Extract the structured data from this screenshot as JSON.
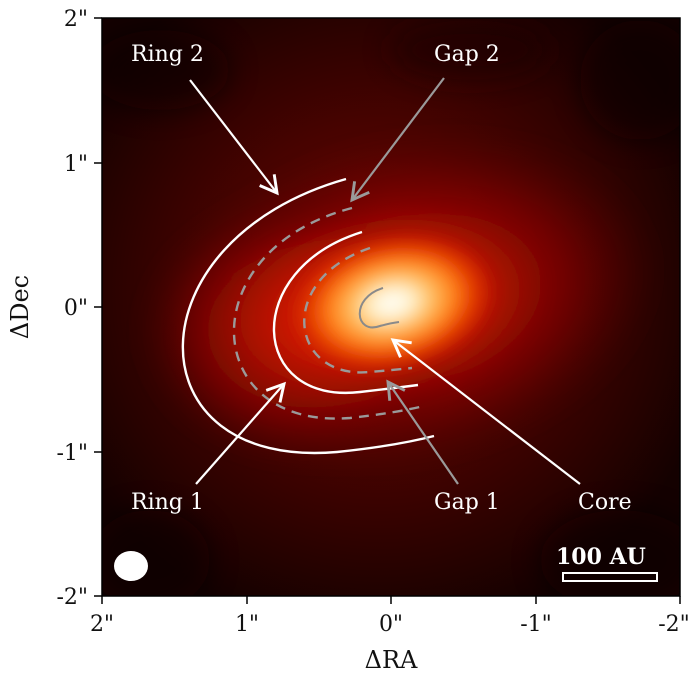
{
  "axes": {
    "xlabel": "ΔRA",
    "ylabel": "ΔDec",
    "x_ticks": [
      "2\"",
      "1\"",
      "0\"",
      "-1\"",
      "-2\""
    ],
    "y_ticks": [
      "2\"",
      "1\"",
      "0\"",
      "-1\"",
      "-2\""
    ]
  },
  "annotations": {
    "ring2": "Ring 2",
    "gap2": "Gap 2",
    "ring1": "Ring 1",
    "gap1": "Gap 1",
    "core": "Core"
  },
  "scale_bar": {
    "label": "100 AU"
  },
  "colors": {
    "background_dark": "#150100",
    "disk_red": "#a80a00",
    "core_white": "#ffffff",
    "ring_line": "#ffffff",
    "gap_line": "#9a9a9a"
  }
}
